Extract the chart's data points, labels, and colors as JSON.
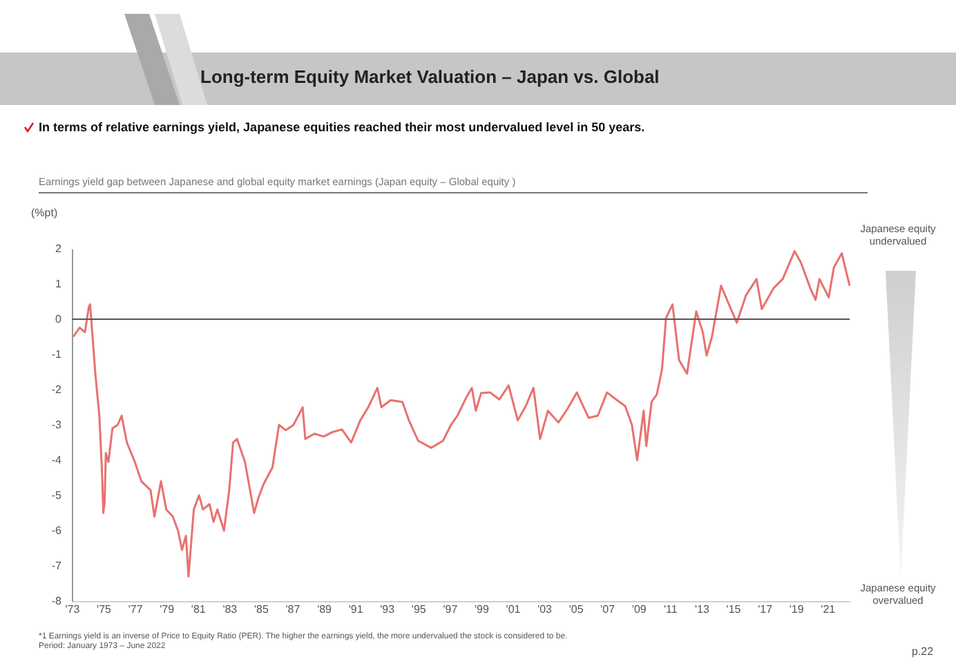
{
  "chart_data": {
    "type": "line",
    "title": "Long-term Equity Market Valuation – Japan vs. Global",
    "subtitle": "In terms of relative earnings yield, Japanese equities reached their most undervalued level in 50 years.",
    "ylabel": "(%pt)",
    "annotations": [
      "Earnings yield gap between Japanese and global equity market earnings  (Japan equity – Global equity )",
      "Japanese equity undervalued",
      "Japanese equity overvalued",
      "*1 Earnings yield is an inverse of Price to Equity Ratio (PER). The higher the earnings yield, the more undervalued the stock is considered to be.",
      "Period: January 1973 – June 2022",
      "p.22"
    ],
    "x": [
      "1973-02",
      "1973-07",
      "1973-11",
      "1974-02",
      "1974-03",
      "1974-07",
      "1974-10",
      "1974-12",
      "1975-01",
      "1975-02",
      "1975-03",
      "1975-05",
      "1975-08",
      "1975-12",
      "1976-03",
      "1976-07",
      "1977-01",
      "1977-06",
      "1978-01",
      "1978-04",
      "1978-09",
      "1979-01",
      "1979-06",
      "1979-10",
      "1980-01",
      "1980-04",
      "1980-06",
      "1980-10",
      "1981-02",
      "1981-05",
      "1981-10",
      "1982-01",
      "1982-04",
      "1982-09",
      "1983-01",
      "1983-04",
      "1983-07",
      "1984-01",
      "1984-08",
      "1984-11",
      "1985-03",
      "1985-10",
      "1986-03",
      "1986-08",
      "1987-02",
      "1987-09",
      "1987-11",
      "1988-06",
      "1989-01",
      "1989-08",
      "1990-03",
      "1990-10",
      "1991-05",
      "1991-11",
      "1992-06",
      "1992-09",
      "1993-04",
      "1994-01",
      "1994-06",
      "1995-01",
      "1995-11",
      "1996-08",
      "1997-02",
      "1997-07",
      "1998-02",
      "1998-06",
      "1998-09",
      "1999-01",
      "1999-08",
      "2000-03",
      "2000-10",
      "2001-05",
      "2001-11",
      "2002-05",
      "2002-10",
      "2003-04",
      "2003-12",
      "2004-07",
      "2005-02",
      "2005-11",
      "2006-06",
      "2007-01",
      "2007-08",
      "2008-03",
      "2008-08",
      "2008-12",
      "2009-05",
      "2009-07",
      "2009-11",
      "2010-03",
      "2010-07",
      "2010-10",
      "2011-03",
      "2011-08",
      "2012-02",
      "2012-09",
      "2013-02",
      "2013-05",
      "2013-09",
      "2014-04",
      "2014-10",
      "2015-04",
      "2015-11",
      "2016-07",
      "2016-11",
      "2017-08",
      "2018-03",
      "2018-12",
      "2019-05",
      "2019-12",
      "2020-04",
      "2020-07",
      "2021-02",
      "2021-06",
      "2021-12",
      "2022-06"
    ],
    "series": [
      {
        "color": "#e8716f",
        "values": [
          -0.5,
          -0.24,
          -0.37,
          0.36,
          0.42,
          -1.55,
          -2.74,
          -4.3,
          -5.5,
          -5.2,
          -3.8,
          -4.05,
          -3.1,
          -3.0,
          -2.74,
          -3.5,
          -4.05,
          -4.6,
          -4.85,
          -5.6,
          -4.6,
          -5.4,
          -5.6,
          -6.0,
          -6.55,
          -6.15,
          -7.3,
          -5.4,
          -5.0,
          -5.4,
          -5.25,
          -5.75,
          -5.4,
          -6.0,
          -4.85,
          -3.5,
          -3.4,
          -4.05,
          -5.5,
          -5.1,
          -4.7,
          -4.2,
          -3.0,
          -3.15,
          -3.0,
          -2.5,
          -3.4,
          -3.25,
          -3.33,
          -3.2,
          -3.13,
          -3.5,
          -2.87,
          -2.5,
          -1.95,
          -2.5,
          -2.3,
          -2.35,
          -2.87,
          -3.45,
          -3.65,
          -3.45,
          -3.0,
          -2.74,
          -2.2,
          -1.95,
          -2.6,
          -2.1,
          -2.08,
          -2.28,
          -1.88,
          -2.87,
          -2.47,
          -1.95,
          -3.4,
          -2.6,
          -2.93,
          -2.54,
          -2.08,
          -2.8,
          -2.74,
          -2.08,
          -2.28,
          -2.47,
          -3.0,
          -4.0,
          -2.6,
          -3.6,
          -2.34,
          -2.14,
          -1.42,
          0.03,
          0.42,
          -1.16,
          -1.55,
          0.22,
          -0.37,
          -1.03,
          -0.5,
          0.95,
          0.42,
          -0.1,
          0.68,
          1.14,
          0.29,
          0.88,
          1.14,
          1.93,
          1.6,
          0.88,
          0.55,
          1.14,
          0.62,
          1.47,
          1.87,
          0.95
        ]
      }
    ],
    "xlim": [
      "1973-01",
      "2022-06"
    ],
    "xticks": [
      {
        "value": "1973-01",
        "label": "'73"
      },
      {
        "value": "1975-01",
        "label": "'75"
      },
      {
        "value": "1977-01",
        "label": "'77"
      },
      {
        "value": "1979-01",
        "label": "'79"
      },
      {
        "value": "1981-01",
        "label": "'81"
      },
      {
        "value": "1983-01",
        "label": "'83"
      },
      {
        "value": "1985-01",
        "label": "'85"
      },
      {
        "value": "1987-01",
        "label": "'87"
      },
      {
        "value": "1989-01",
        "label": "'89"
      },
      {
        "value": "1991-01",
        "label": "'91"
      },
      {
        "value": "1993-01",
        "label": "'93"
      },
      {
        "value": "1995-01",
        "label": "'95"
      },
      {
        "value": "1997-01",
        "label": "'97"
      },
      {
        "value": "1999-01",
        "label": "'99"
      },
      {
        "value": "2001-01",
        "label": "'01"
      },
      {
        "value": "2003-01",
        "label": "'03"
      },
      {
        "value": "2005-01",
        "label": "'05"
      },
      {
        "value": "2007-01",
        "label": "'07"
      },
      {
        "value": "2009-01",
        "label": "'09"
      },
      {
        "value": "2011-01",
        "label": "'11"
      },
      {
        "value": "2013-01",
        "label": "'13"
      },
      {
        "value": "2015-01",
        "label": "'15"
      },
      {
        "value": "2017-01",
        "label": "'17"
      },
      {
        "value": "2019-01",
        "label": "'19"
      },
      {
        "value": "2021-01",
        "label": "'21"
      }
    ],
    "ylim": [
      -8,
      2
    ],
    "yticks": [
      -8,
      -7,
      -6,
      -5,
      -4,
      -3,
      -2,
      -1,
      0,
      1,
      2
    ],
    "ref_lines": [
      {
        "axis": "y",
        "value": 0,
        "color": "#555555"
      }
    ]
  }
}
